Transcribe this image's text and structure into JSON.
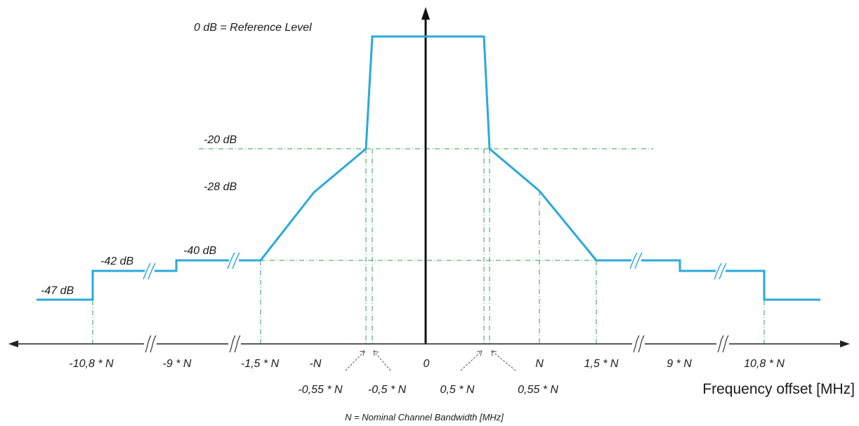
{
  "reference_label": "0 dB = Reference Level",
  "levels": {
    "minus20": "-20 dB",
    "minus28": "-28 dB",
    "minus40": "-40 dB",
    "minus42": "-42 dB",
    "minus47": "-47 dB"
  },
  "x_ticks": {
    "m10_8": "-10,8 * N",
    "m9": "-9 * N",
    "m1_5": "-1,5 * N",
    "mN": "-N",
    "zero": "0",
    "pN": "N",
    "p1_5": "1,5 * N",
    "p9": "9 * N",
    "p10_8": "10,8 * N"
  },
  "x_ticks_lower": {
    "m0_55": "-0,55 * N",
    "m0_5": "-0,5 * N",
    "p0_5": "0,5 * N",
    "p0_55": "0,55 * N"
  },
  "x_axis_title": "Frequency offset [MHz]",
  "footnote": "N = Nominal Channel Bandwidth [MHz]",
  "colors": {
    "mask_line": "#2aa9dc",
    "guide_lines": "#2fa050",
    "axes": "#111111"
  }
}
